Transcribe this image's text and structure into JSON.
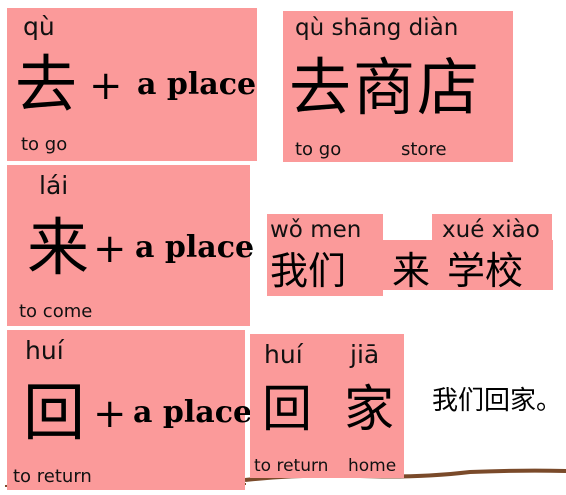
{
  "card_qu": {
    "pinyin": "qù",
    "hanzi": "去",
    "plus": "+",
    "suffix": "a place",
    "meaning": "to go"
  },
  "card_qu_shangdian": {
    "pinyin": "qù shāng diàn",
    "hanzi": "去商店",
    "meaning_1": "to go",
    "meaning_2": "store"
  },
  "card_lai": {
    "pinyin": "lái",
    "hanzi": "来",
    "plus": "+",
    "suffix": "a place",
    "meaning": "to come"
  },
  "card_women_lai_xuexiao": {
    "pinyin_1": "wǒ men",
    "pinyin_2": "xué xiào",
    "hanzi_1": "我们",
    "hanzi_2": "来",
    "hanzi_3": "学校"
  },
  "card_hui": {
    "pinyin": "huí",
    "hanzi": "回",
    "plus": "+",
    "suffix": "a place",
    "meaning": "to return"
  },
  "card_hui_jia": {
    "pinyin_1": "huí",
    "pinyin_2": "jiā",
    "hanzi_1": "回",
    "hanzi_2": "家",
    "meaning_1": "to return",
    "meaning_2": "home"
  },
  "sentence_women_hui_jia": "我们回家。",
  "colors": {
    "card_background": "#fb9a9a",
    "ground_line": "#7a4a2a",
    "text": "#111111"
  }
}
